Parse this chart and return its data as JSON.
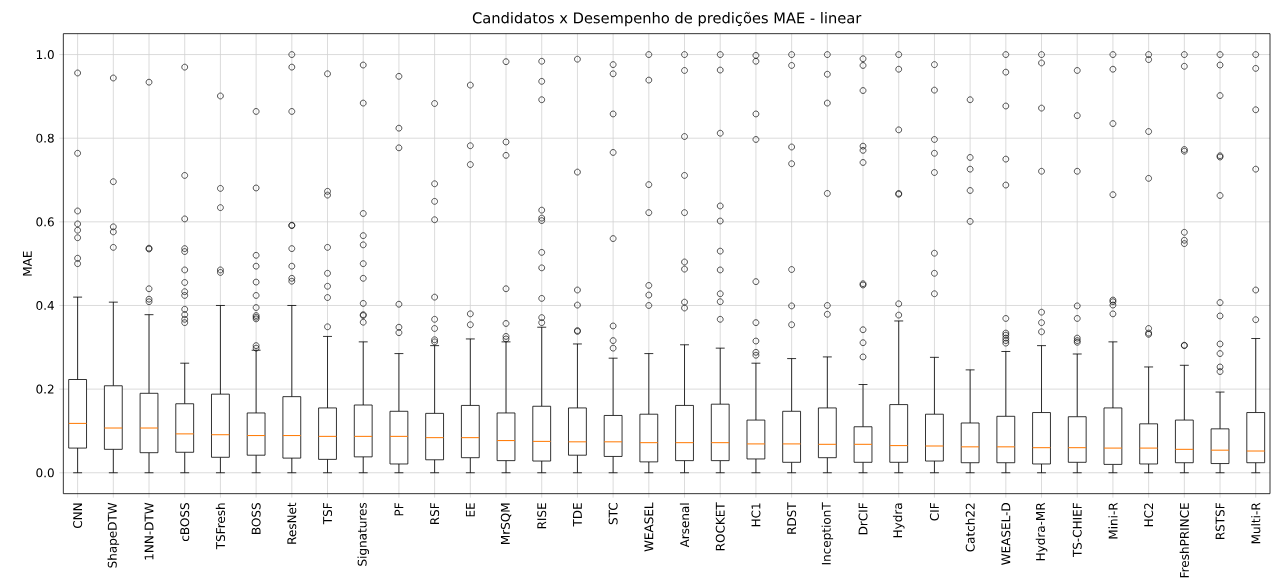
{
  "chart_data": {
    "type": "box",
    "title": "Candidatos x Desempenho de predições MAE - linear",
    "ylabel": "MAE",
    "categories": [
      "CNN",
      "ShapeDTW",
      "1NN-DTW",
      "cBOSS",
      "TSFresh",
      "BOSS",
      "ResNet",
      "TSF",
      "Signatures",
      "PF",
      "RSF",
      "EE",
      "MrSQM",
      "RISE",
      "TDE",
      "STC",
      "WEASEL",
      "Arsenal",
      "ROCKET",
      "HC1",
      "RDST",
      "InceptionT",
      "DrCIF",
      "Hydra",
      "CIF",
      "Catch22",
      "WEASEL-D",
      "Hydra-MR",
      "TS-CHIEF",
      "Mini-R",
      "HC2",
      "FreshPRINCE",
      "RSTSF",
      "Multi-R"
    ],
    "color": "#000000",
    "grid": true,
    "ylim": [
      -0.05,
      1.05
    ],
    "yticks": [
      {
        "value": 0,
        "label": "0.0"
      },
      {
        "value": 0.2,
        "label": "0.2"
      },
      {
        "value": 0.4,
        "label": "0.4"
      },
      {
        "value": 0.6,
        "label": "0.6"
      },
      {
        "value": 0.8,
        "label": "0.8"
      },
      {
        "value": 1.0,
        "label": "1.0"
      }
    ],
    "boxes": [
      {
        "low": 0,
        "q1": 0.059,
        "median": 0.118,
        "q3": 0.223,
        "high": 0.42,
        "outliers": [
          0.5,
          0.513,
          0.562,
          0.58,
          0.595,
          0.626,
          0.764,
          0.956
        ]
      },
      {
        "low": 0,
        "q1": 0.056,
        "median": 0.107,
        "q3": 0.208,
        "high": 0.408,
        "outliers": [
          0.539,
          0.576,
          0.588,
          0.696,
          0.944
        ]
      },
      {
        "low": 0,
        "q1": 0.048,
        "median": 0.107,
        "q3": 0.19,
        "high": 0.378,
        "outliers": [
          0.409,
          0.415,
          0.44,
          0.535,
          0.537,
          0.934
        ]
      },
      {
        "low": 0,
        "q1": 0.049,
        "median": 0.093,
        "q3": 0.165,
        "high": 0.262,
        "outliers": [
          0.359,
          0.367,
          0.378,
          0.391,
          0.424,
          0.433,
          0.455,
          0.485,
          0.529,
          0.536,
          0.607,
          0.711,
          0.97
        ]
      },
      {
        "low": 0,
        "q1": 0.037,
        "median": 0.091,
        "q3": 0.188,
        "high": 0.4,
        "outliers": [
          0.479,
          0.485,
          0.634,
          0.68,
          0.901
        ]
      },
      {
        "low": 0,
        "q1": 0.042,
        "median": 0.089,
        "q3": 0.143,
        "high": 0.293,
        "outliers": [
          0.298,
          0.304,
          0.368,
          0.372,
          0.376,
          0.395,
          0.424,
          0.456,
          0.494,
          0.52,
          0.681,
          0.864
        ]
      },
      {
        "low": 0,
        "q1": 0.035,
        "median": 0.089,
        "q3": 0.182,
        "high": 0.4,
        "outliers": [
          0.458,
          0.465,
          0.494,
          0.536,
          0.591,
          0.592,
          0.864,
          0.97,
          1.0
        ]
      },
      {
        "low": 0,
        "q1": 0.032,
        "median": 0.087,
        "q3": 0.155,
        "high": 0.326,
        "outliers": [
          0.349,
          0.419,
          0.446,
          0.477,
          0.539,
          0.664,
          0.673,
          0.954
        ]
      },
      {
        "low": 0,
        "q1": 0.038,
        "median": 0.087,
        "q3": 0.162,
        "high": 0.313,
        "outliers": [
          0.36,
          0.376,
          0.378,
          0.405,
          0.465,
          0.5,
          0.545,
          0.567,
          0.62,
          0.884,
          0.975
        ]
      },
      {
        "low": 0,
        "q1": 0.021,
        "median": 0.087,
        "q3": 0.147,
        "high": 0.285,
        "outliers": [
          0.335,
          0.348,
          0.403,
          0.777,
          0.824,
          0.948
        ]
      },
      {
        "low": 0,
        "q1": 0.031,
        "median": 0.084,
        "q3": 0.142,
        "high": 0.304,
        "outliers": [
          0.313,
          0.318,
          0.345,
          0.367,
          0.42,
          0.605,
          0.649,
          0.691,
          0.883
        ]
      },
      {
        "low": 0,
        "q1": 0.036,
        "median": 0.084,
        "q3": 0.161,
        "high": 0.32,
        "outliers": [
          0.354,
          0.38,
          0.737,
          0.782,
          0.927
        ]
      },
      {
        "low": 0,
        "q1": 0.029,
        "median": 0.077,
        "q3": 0.143,
        "high": 0.313,
        "outliers": [
          0.32,
          0.326,
          0.357,
          0.44,
          0.759,
          0.791,
          0.983
        ]
      },
      {
        "low": 0,
        "q1": 0.028,
        "median": 0.075,
        "q3": 0.159,
        "high": 0.348,
        "outliers": [
          0.359,
          0.371,
          0.417,
          0.49,
          0.527,
          0.603,
          0.609,
          0.628,
          0.892,
          0.936,
          0.984
        ]
      },
      {
        "low": 0,
        "q1": 0.042,
        "median": 0.074,
        "q3": 0.155,
        "high": 0.308,
        "outliers": [
          0.338,
          0.34,
          0.401,
          0.437,
          0.719,
          0.989
        ]
      },
      {
        "low": 0,
        "q1": 0.039,
        "median": 0.074,
        "q3": 0.137,
        "high": 0.274,
        "outliers": [
          0.298,
          0.316,
          0.351,
          0.56,
          0.766,
          0.858,
          0.954,
          0.976
        ]
      },
      {
        "low": 0,
        "q1": 0.026,
        "median": 0.072,
        "q3": 0.14,
        "high": 0.285,
        "outliers": [
          0.4,
          0.425,
          0.448,
          0.622,
          0.689,
          0.939,
          1.0
        ]
      },
      {
        "low": 0,
        "q1": 0.029,
        "median": 0.072,
        "q3": 0.161,
        "high": 0.306,
        "outliers": [
          0.394,
          0.408,
          0.487,
          0.504,
          0.622,
          0.711,
          0.804,
          0.962,
          1.0
        ]
      },
      {
        "low": 0,
        "q1": 0.029,
        "median": 0.072,
        "q3": 0.164,
        "high": 0.298,
        "outliers": [
          0.367,
          0.409,
          0.428,
          0.485,
          0.53,
          0.602,
          0.638,
          0.812,
          0.963,
          1.0
        ]
      },
      {
        "low": 0,
        "q1": 0.033,
        "median": 0.069,
        "q3": 0.126,
        "high": 0.262,
        "outliers": [
          0.281,
          0.288,
          0.315,
          0.359,
          0.457,
          0.797,
          0.858,
          0.984,
          0.998
        ]
      },
      {
        "low": 0,
        "q1": 0.025,
        "median": 0.069,
        "q3": 0.147,
        "high": 0.273,
        "outliers": [
          0.354,
          0.399,
          0.486,
          0.739,
          0.779,
          0.974,
          1.0
        ]
      },
      {
        "low": 0,
        "q1": 0.036,
        "median": 0.068,
        "q3": 0.155,
        "high": 0.277,
        "outliers": [
          0.379,
          0.4,
          0.668,
          0.884,
          0.953,
          1.0
        ]
      },
      {
        "low": 0,
        "q1": 0.025,
        "median": 0.068,
        "q3": 0.11,
        "high": 0.211,
        "outliers": [
          0.277,
          0.311,
          0.342,
          0.449,
          0.452,
          0.742,
          0.771,
          0.781,
          0.914,
          0.974,
          0.99
        ]
      },
      {
        "low": 0,
        "q1": 0.025,
        "median": 0.065,
        "q3": 0.163,
        "high": 0.363,
        "outliers": [
          0.377,
          0.404,
          0.666,
          0.668,
          0.82,
          0.965,
          1.0
        ]
      },
      {
        "low": 0,
        "q1": 0.028,
        "median": 0.064,
        "q3": 0.14,
        "high": 0.276,
        "outliers": [
          0.428,
          0.477,
          0.525,
          0.718,
          0.764,
          0.797,
          0.915,
          0.976
        ]
      },
      {
        "low": 0,
        "q1": 0.024,
        "median": 0.062,
        "q3": 0.119,
        "high": 0.246,
        "outliers": [
          0.601,
          0.675,
          0.726,
          0.754,
          0.892
        ]
      },
      {
        "low": 0,
        "q1": 0.024,
        "median": 0.062,
        "q3": 0.135,
        "high": 0.29,
        "outliers": [
          0.31,
          0.316,
          0.322,
          0.329,
          0.334,
          0.369,
          0.688,
          0.75,
          0.877,
          0.958,
          1.0
        ]
      },
      {
        "low": 0,
        "q1": 0.021,
        "median": 0.06,
        "q3": 0.144,
        "high": 0.304,
        "outliers": [
          0.337,
          0.359,
          0.384,
          0.721,
          0.872,
          0.98,
          1.0
        ]
      },
      {
        "low": 0,
        "q1": 0.025,
        "median": 0.06,
        "q3": 0.134,
        "high": 0.284,
        "outliers": [
          0.312,
          0.316,
          0.322,
          0.369,
          0.399,
          0.721,
          0.854,
          0.962
        ]
      },
      {
        "low": 0,
        "q1": 0.02,
        "median": 0.059,
        "q3": 0.155,
        "high": 0.313,
        "outliers": [
          0.38,
          0.401,
          0.409,
          0.413,
          0.665,
          0.835,
          0.965,
          1.0
        ]
      },
      {
        "low": 0,
        "q1": 0.021,
        "median": 0.059,
        "q3": 0.117,
        "high": 0.253,
        "outliers": [
          0.331,
          0.334,
          0.345,
          0.704,
          0.816,
          0.988,
          1.0
        ]
      },
      {
        "low": 0,
        "q1": 0.024,
        "median": 0.056,
        "q3": 0.126,
        "high": 0.257,
        "outliers": [
          0.304,
          0.305,
          0.548,
          0.556,
          0.575,
          0.769,
          0.773,
          0.972,
          1.0
        ]
      },
      {
        "low": 0,
        "q1": 0.022,
        "median": 0.054,
        "q3": 0.105,
        "high": 0.193,
        "outliers": [
          0.242,
          0.253,
          0.285,
          0.308,
          0.375,
          0.407,
          0.663,
          0.755,
          0.758,
          0.902,
          0.975,
          1.0
        ]
      },
      {
        "low": 0,
        "q1": 0.024,
        "median": 0.052,
        "q3": 0.144,
        "high": 0.321,
        "outliers": [
          0.366,
          0.437,
          0.726,
          0.868,
          0.967,
          1.0
        ]
      }
    ]
  }
}
